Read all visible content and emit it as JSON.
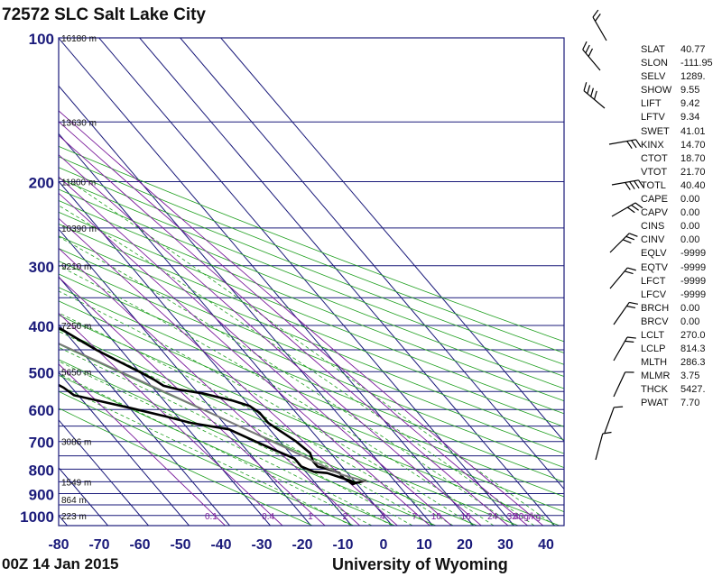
{
  "header": {
    "title": "72572 SLC Salt Lake City"
  },
  "footer": {
    "time": "00Z 14 Jan 2015",
    "source": "University of Wyoming"
  },
  "indices": [
    {
      "k": "SLAT",
      "v": "40.77"
    },
    {
      "k": "SLON",
      "v": "-111.95"
    },
    {
      "k": "SELV",
      "v": "1289."
    },
    {
      "k": "SHOW",
      "v": "9.55"
    },
    {
      "k": "LIFT",
      "v": "9.42"
    },
    {
      "k": "LFTV",
      "v": "9.34"
    },
    {
      "k": "SWET",
      "v": "41.01"
    },
    {
      "k": "KINX",
      "v": "14.70"
    },
    {
      "k": "CTOT",
      "v": "18.70"
    },
    {
      "k": "VTOT",
      "v": "21.70"
    },
    {
      "k": "TOTL",
      "v": "40.40"
    },
    {
      "k": "CAPE",
      "v": "0.00"
    },
    {
      "k": "CAPV",
      "v": "0.00"
    },
    {
      "k": "CINS",
      "v": "0.00"
    },
    {
      "k": "CINV",
      "v": "0.00"
    },
    {
      "k": "EQLV",
      "v": "-9999"
    },
    {
      "k": "EQTV",
      "v": "-9999"
    },
    {
      "k": "LFCT",
      "v": "-9999"
    },
    {
      "k": "LFCV",
      "v": "-9999"
    },
    {
      "k": "BRCH",
      "v": "0.00"
    },
    {
      "k": "BRCV",
      "v": "0.00"
    },
    {
      "k": "LCLT",
      "v": "270.0"
    },
    {
      "k": "LCLP",
      "v": "814.3"
    },
    {
      "k": "MLTH",
      "v": "286.3"
    },
    {
      "k": "MLMR",
      "v": "3.75"
    },
    {
      "k": "THCK",
      "v": "5427."
    },
    {
      "k": "PWAT",
      "v": "7.70"
    }
  ],
  "colors": {
    "grid": "#1a1a7a",
    "mixing": "#7a1a9a",
    "dry_adiabat": "#1f9f1f",
    "moist_adiabat": "#1f9f1f",
    "profile": "#000000",
    "parcel": "#7a7a7a"
  },
  "chart_data": {
    "type": "line",
    "title": "72572 SLC Salt Lake City",
    "xlabel": "",
    "ylabel": "",
    "x_ticks": [
      -80,
      -70,
      -60,
      -50,
      -40,
      -30,
      -20,
      -10,
      0,
      10,
      20,
      30,
      40
    ],
    "y_ticks": [
      100,
      200,
      300,
      400,
      500,
      600,
      700,
      800,
      900,
      1000
    ],
    "xlim": [
      -80,
      45
    ],
    "ylim": [
      1050,
      100
    ],
    "y_scale": "log",
    "x_skew": true,
    "height_labels": [
      {
        "p": 100,
        "label": "16180 m"
      },
      {
        "p": 150,
        "label": "13630 m"
      },
      {
        "p": 200,
        "label": "11800 m"
      },
      {
        "p": 250,
        "label": "10390 m"
      },
      {
        "p": 300,
        "label": "9210 m"
      },
      {
        "p": 400,
        "label": "7250 m"
      },
      {
        "p": 500,
        "label": "5650 m"
      },
      {
        "p": 700,
        "label": "3086 m"
      },
      {
        "p": 850,
        "label": "1549 m"
      },
      {
        "p": 925,
        "label": "864 m"
      },
      {
        "p": 1000,
        "label": "223 m"
      }
    ],
    "mixing_ratio_labels": [
      "0.1",
      "0.4",
      "1",
      "2",
      "4",
      "7",
      "10",
      "16",
      "24",
      "32",
      "40g/kg"
    ],
    "series": [
      {
        "points": [
          [
            3,
            845
          ],
          [
            0,
            855
          ],
          [
            -1,
            860
          ],
          [
            -2,
            835
          ],
          [
            -2,
            815
          ],
          [
            -4,
            800
          ],
          [
            -6,
            790
          ],
          [
            -6,
            770
          ],
          [
            -5,
            740
          ],
          [
            -6,
            700
          ],
          [
            -8,
            660
          ],
          [
            -9,
            640
          ],
          [
            -9,
            610
          ],
          [
            -10,
            590
          ],
          [
            -13,
            575
          ],
          [
            -19,
            555
          ],
          [
            -24,
            545
          ],
          [
            -27,
            535
          ],
          [
            -28,
            520
          ],
          [
            -30,
            500
          ],
          [
            -33,
            475
          ],
          [
            -36,
            450
          ],
          [
            -38,
            430
          ],
          [
            -40,
            410
          ],
          [
            -43,
            390
          ],
          [
            -45,
            370
          ],
          [
            -47,
            350
          ],
          [
            -49,
            330
          ],
          [
            -51,
            315
          ],
          [
            -53,
            300
          ],
          [
            -55,
            290
          ],
          [
            -55,
            275
          ],
          [
            -57,
            265
          ],
          [
            -59,
            255
          ],
          [
            -60,
            245
          ],
          [
            -60,
            235
          ],
          [
            -60,
            225
          ],
          [
            -60,
            215
          ],
          [
            -61,
            205
          ],
          [
            -61,
            200
          ],
          [
            -60,
            190
          ],
          [
            -59,
            180
          ],
          [
            -59,
            170
          ],
          [
            -58,
            160
          ],
          [
            -57,
            150
          ],
          [
            -57,
            140
          ],
          [
            -58,
            130
          ],
          [
            -59,
            120
          ],
          [
            -59,
            110
          ],
          [
            -58,
            100
          ]
        ]
      },
      {
        "points": [
          [
            0,
            855
          ],
          [
            -1,
            845
          ],
          [
            -3,
            830
          ],
          [
            -5,
            815
          ],
          [
            -8,
            810
          ],
          [
            -10,
            790
          ],
          [
            -10,
            760
          ],
          [
            -13,
            730
          ],
          [
            -16,
            700
          ],
          [
            -20,
            660
          ],
          [
            -28,
            640
          ],
          [
            -33,
            620
          ],
          [
            -40,
            595
          ],
          [
            -51,
            560
          ],
          [
            -52,
            540
          ],
          [
            -54,
            520
          ],
          [
            -56,
            500
          ],
          [
            -58,
            480
          ],
          [
            -58,
            460
          ],
          [
            -64,
            440
          ],
          [
            -75,
            420
          ],
          [
            -77,
            410
          ],
          [
            -76,
            395
          ],
          [
            -68,
            380
          ],
          [
            -66,
            360
          ],
          [
            -67,
            330
          ],
          [
            -66,
            300
          ],
          [
            -67,
            285
          ],
          [
            -71,
            260
          ],
          [
            -76,
            240
          ],
          [
            -78,
            225
          ],
          [
            -80,
            210
          ],
          [
            -81,
            200
          ],
          [
            -83,
            180
          ],
          [
            -85,
            160
          ],
          [
            -90,
            140
          ]
        ]
      },
      {
        "points": [
          [
            3,
            850
          ],
          [
            -2,
            820
          ],
          [
            -10,
            720
          ],
          [
            -20,
            620
          ],
          [
            -32,
            520
          ],
          [
            -45,
            430
          ],
          [
            -58,
            350
          ],
          [
            -70,
            285
          ],
          [
            -80,
            240
          ],
          [
            -90,
            200
          ]
        ]
      }
    ]
  }
}
